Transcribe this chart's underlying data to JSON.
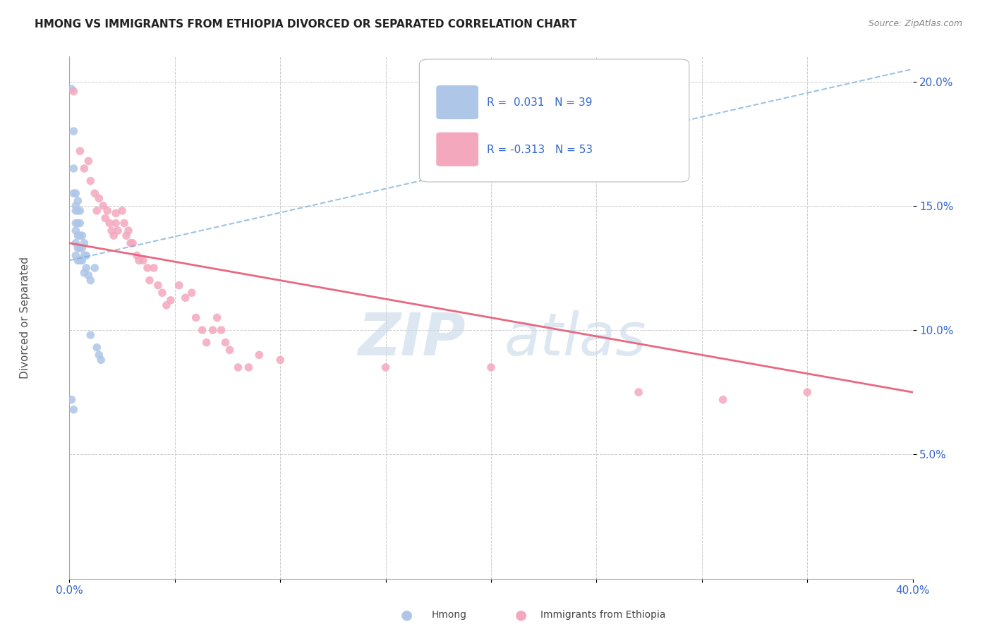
{
  "title": "HMONG VS IMMIGRANTS FROM ETHIOPIA DIVORCED OR SEPARATED CORRELATION CHART",
  "source": "Source: ZipAtlas.com",
  "ylabel": "Divorced or Separated",
  "x_min": 0.0,
  "x_max": 0.4,
  "y_min": 0.0,
  "y_max": 0.21,
  "hmong_color": "#aec6e8",
  "ethiopia_color": "#f4a8be",
  "hmong_line_color": "#7aafda",
  "ethiopia_line_color": "#e8607a",
  "R_hmong": 0.031,
  "N_hmong": 39,
  "R_ethiopia": -0.313,
  "N_ethiopia": 53,
  "hmong_x": [
    0.001,
    0.001,
    0.002,
    0.002,
    0.002,
    0.002,
    0.003,
    0.003,
    0.003,
    0.003,
    0.003,
    0.003,
    0.003,
    0.004,
    0.004,
    0.004,
    0.004,
    0.004,
    0.004,
    0.005,
    0.005,
    0.005,
    0.005,
    0.005,
    0.006,
    0.006,
    0.006,
    0.007,
    0.007,
    0.007,
    0.008,
    0.008,
    0.009,
    0.01,
    0.01,
    0.012,
    0.013,
    0.014,
    0.015
  ],
  "hmong_y": [
    0.197,
    0.072,
    0.18,
    0.165,
    0.155,
    0.068,
    0.155,
    0.15,
    0.148,
    0.143,
    0.14,
    0.135,
    0.13,
    0.152,
    0.148,
    0.143,
    0.138,
    0.133,
    0.128,
    0.148,
    0.143,
    0.138,
    0.133,
    0.128,
    0.138,
    0.133,
    0.128,
    0.135,
    0.13,
    0.123,
    0.13,
    0.125,
    0.122,
    0.12,
    0.098,
    0.125,
    0.093,
    0.09,
    0.088
  ],
  "ethiopia_x": [
    0.002,
    0.005,
    0.007,
    0.009,
    0.01,
    0.012,
    0.013,
    0.014,
    0.016,
    0.017,
    0.018,
    0.019,
    0.02,
    0.021,
    0.022,
    0.022,
    0.023,
    0.025,
    0.026,
    0.027,
    0.028,
    0.029,
    0.03,
    0.032,
    0.033,
    0.035,
    0.037,
    0.038,
    0.04,
    0.042,
    0.044,
    0.046,
    0.048,
    0.052,
    0.055,
    0.058,
    0.06,
    0.063,
    0.065,
    0.068,
    0.07,
    0.072,
    0.074,
    0.076,
    0.08,
    0.085,
    0.09,
    0.1,
    0.15,
    0.2,
    0.27,
    0.31,
    0.35
  ],
  "ethiopia_y": [
    0.196,
    0.172,
    0.165,
    0.168,
    0.16,
    0.155,
    0.148,
    0.153,
    0.15,
    0.145,
    0.148,
    0.143,
    0.14,
    0.138,
    0.147,
    0.143,
    0.14,
    0.148,
    0.143,
    0.138,
    0.14,
    0.135,
    0.135,
    0.13,
    0.128,
    0.128,
    0.125,
    0.12,
    0.125,
    0.118,
    0.115,
    0.11,
    0.112,
    0.118,
    0.113,
    0.115,
    0.105,
    0.1,
    0.095,
    0.1,
    0.105,
    0.1,
    0.095,
    0.092,
    0.085,
    0.085,
    0.09,
    0.088,
    0.085,
    0.085,
    0.075,
    0.072,
    0.075
  ]
}
